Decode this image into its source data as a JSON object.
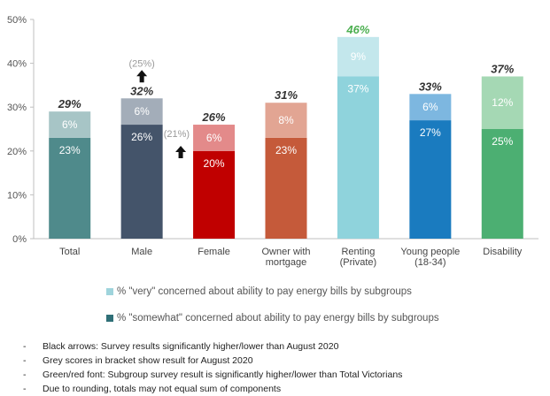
{
  "chart_data": {
    "type": "bar",
    "stacked": true,
    "ylim": [
      0,
      50
    ],
    "yticks": [
      "0%",
      "10%",
      "20%",
      "30%",
      "40%",
      "50%"
    ],
    "grid": false,
    "categories": [
      "Total",
      "Male",
      "Female",
      "Owner with\nmortgage",
      "Renting\n(Private)",
      "Young people\n(18-34)",
      "Disability"
    ],
    "series": [
      {
        "name": "% \"somewhat\" concerned about ability to pay energy bills by subgroups",
        "values": [
          23,
          26,
          20,
          23,
          37,
          27,
          25
        ],
        "labels": [
          "23%",
          "26%",
          "20%",
          "23%",
          "37%",
          "27%",
          "25%"
        ]
      },
      {
        "name": "% \"very\" concerned about ability to pay energy bills by subgroups",
        "values": [
          6,
          6,
          6,
          8,
          9,
          6,
          12
        ],
        "labels": [
          "6%",
          "6%",
          "6%",
          "8%",
          "9%",
          "6%",
          "12%"
        ]
      }
    ],
    "totals": [
      29,
      32,
      26,
      31,
      46,
      33,
      37
    ],
    "total_labels": [
      "29%",
      "32%",
      "26%",
      "31%",
      "46%",
      "33%",
      "37%"
    ],
    "total_label_colors": [
      "#333333",
      "#333333",
      "#333333",
      "#333333",
      "#4caf50",
      "#333333",
      "#333333"
    ],
    "bottom_colors": [
      "#4f8a8b",
      "#44546a",
      "#c00000",
      "#c55a3a",
      "#8fd3dc",
      "#1a7bbf",
      "#4caf72"
    ],
    "top_colors": [
      "#a7c5c6",
      "#a3adb9",
      "#e38a8a",
      "#e2a593",
      "#c3e7ec",
      "#7db7e0",
      "#a5d8b4"
    ],
    "previous": [
      {
        "category": "Male",
        "label": "(25%)",
        "arrow": "up"
      },
      {
        "category": "Female",
        "label": "(21%)",
        "arrow": "up"
      }
    ]
  },
  "legend": {
    "very": "% \"very\" concerned about ability to pay energy bills by subgroups",
    "somewhat": "% \"somewhat\" concerned about ability to pay energy bills by subgroups",
    "very_color": "#9fd4dc",
    "somewhat_color": "#2f6f77"
  },
  "notes": [
    "Black arrows: Survey results significantly higher/lower than August 2020",
    "Grey scores in bracket show result for August 2020",
    "Green/red font: Subgroup survey result is significantly higher/lower than Total Victorians",
    "Due to rounding, totals may not equal sum of components"
  ],
  "bullet": "-"
}
